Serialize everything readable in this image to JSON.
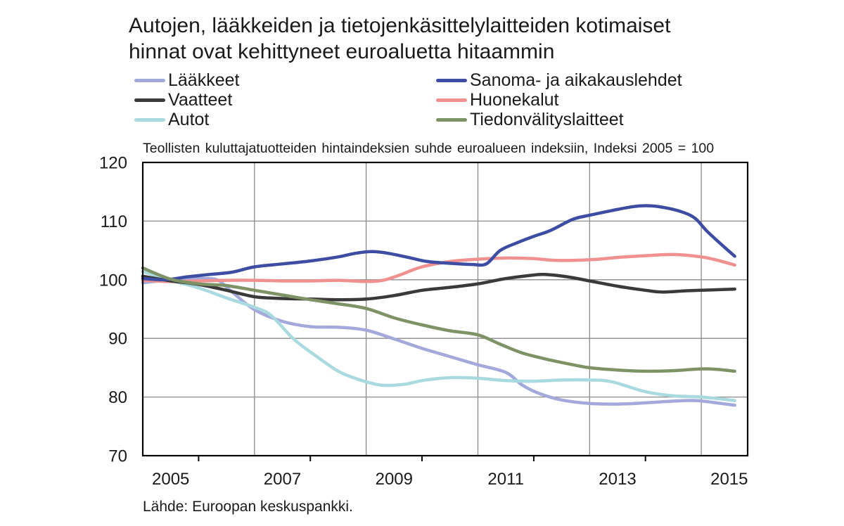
{
  "title": {
    "line1": "Autojen, lääkkeiden ja tietojenkäsittelylaitteiden kotimaiset",
    "line2": "hinnat ovat kehittyneet euroaluetta hitaammin"
  },
  "subtitle": "Teollisten kuluttajatuotteiden hintaindeksien suhde euroalueen indeksiin, Indeksi 2005 = 100",
  "source": "Lähde: Euroopan keskuspankki.",
  "legend": {
    "left": [
      "Lääkkeet",
      "Vaatteet",
      "Autot"
    ],
    "right": [
      "Sanoma- ja aikakauslehdet",
      "Huonekalut",
      "Tiedonvälityslaitteet"
    ]
  },
  "chart_data": {
    "type": "line",
    "title": "Autojen, lääkkeiden ja tietojenkäsittelylaitteiden kotimaiset hinnat ovat kehittyneet euroaluetta hitaammin",
    "subtitle": "Teollisten kuluttajatuotteiden hintaindeksien suhde euroalueen indeksiin, Indeksi 2005 = 100",
    "grid_color": "#8a8a8a",
    "frame_color": "#000000",
    "x_axis": {
      "range": [
        2005.0,
        2015.83
      ],
      "gridlines": [
        2007,
        2009,
        2011,
        2013,
        2015
      ],
      "minor_ticks": [
        2006,
        2008,
        2010,
        2012,
        2014
      ],
      "labels": [
        {
          "text": "2005",
          "pos": 2005.5
        },
        {
          "text": "2007",
          "pos": 2007.5
        },
        {
          "text": "2009",
          "pos": 2009.5
        },
        {
          "text": "2011",
          "pos": 2011.5
        },
        {
          "text": "2013",
          "pos": 2013.5
        },
        {
          "text": "2015",
          "pos": 2015.5
        }
      ]
    },
    "y_axis": {
      "range": [
        70,
        120
      ],
      "gridlines": [
        80,
        90,
        100,
        110
      ],
      "labels": [
        70,
        80,
        90,
        100,
        110,
        120
      ]
    },
    "series": [
      {
        "name": "Lääkkeet",
        "color": "#a3a9db",
        "points": [
          [
            2005.0,
            99.5
          ],
          [
            2005.4,
            99.9
          ],
          [
            2005.8,
            100.2
          ],
          [
            2006.1,
            100.2
          ],
          [
            2006.35,
            99.9
          ],
          [
            2006.6,
            97.9
          ],
          [
            2007.0,
            94.9
          ],
          [
            2007.5,
            92.9
          ],
          [
            2008.0,
            92.0
          ],
          [
            2008.5,
            91.9
          ],
          [
            2009.0,
            91.4
          ],
          [
            2009.5,
            89.9
          ],
          [
            2010.0,
            88.3
          ],
          [
            2010.5,
            86.9
          ],
          [
            2011.0,
            85.5
          ],
          [
            2011.5,
            84.2
          ],
          [
            2011.8,
            82.0
          ],
          [
            2012.1,
            80.6
          ],
          [
            2012.5,
            79.5
          ],
          [
            2013.0,
            78.9
          ],
          [
            2013.5,
            78.8
          ],
          [
            2014.0,
            79.0
          ],
          [
            2014.5,
            79.3
          ],
          [
            2014.9,
            79.4
          ],
          [
            2015.2,
            79.1
          ],
          [
            2015.6,
            78.6
          ]
        ]
      },
      {
        "name": "Autot",
        "color": "#a9dadf",
        "points": [
          [
            2005.0,
            101.4
          ],
          [
            2005.5,
            99.9
          ],
          [
            2006.0,
            98.6
          ],
          [
            2006.5,
            96.9
          ],
          [
            2007.0,
            95.3
          ],
          [
            2007.3,
            93.9
          ],
          [
            2007.7,
            89.9
          ],
          [
            2008.1,
            87.0
          ],
          [
            2008.5,
            84.4
          ],
          [
            2008.8,
            83.2
          ],
          [
            2009.0,
            82.6
          ],
          [
            2009.3,
            82.0
          ],
          [
            2009.7,
            82.2
          ],
          [
            2010.0,
            82.8
          ],
          [
            2010.5,
            83.3
          ],
          [
            2011.0,
            83.2
          ],
          [
            2011.5,
            82.8
          ],
          [
            2012.0,
            82.7
          ],
          [
            2012.5,
            82.9
          ],
          [
            2013.0,
            82.9
          ],
          [
            2013.4,
            82.6
          ],
          [
            2014.0,
            80.9
          ],
          [
            2014.5,
            80.2
          ],
          [
            2015.0,
            80.0
          ],
          [
            2015.6,
            79.4
          ]
        ]
      },
      {
        "name": "Huonekalut",
        "color": "#f0908f",
        "points": [
          [
            2005.0,
            99.9
          ],
          [
            2005.5,
            99.7
          ],
          [
            2006.0,
            99.8
          ],
          [
            2006.5,
            99.9
          ],
          [
            2007.0,
            99.9
          ],
          [
            2007.5,
            99.8
          ],
          [
            2008.0,
            99.8
          ],
          [
            2008.5,
            99.9
          ],
          [
            2009.0,
            99.7
          ],
          [
            2009.3,
            99.9
          ],
          [
            2009.6,
            100.8
          ],
          [
            2010.0,
            102.2
          ],
          [
            2010.5,
            103.1
          ],
          [
            2011.0,
            103.5
          ],
          [
            2011.5,
            103.7
          ],
          [
            2012.0,
            103.6
          ],
          [
            2012.4,
            103.3
          ],
          [
            2013.0,
            103.4
          ],
          [
            2013.5,
            103.8
          ],
          [
            2014.0,
            104.1
          ],
          [
            2014.5,
            104.3
          ],
          [
            2015.0,
            103.9
          ],
          [
            2015.3,
            103.3
          ],
          [
            2015.6,
            102.5
          ]
        ]
      },
      {
        "name": "Vaatteet",
        "color": "#3a3a3a",
        "points": [
          [
            2005.0,
            100.6
          ],
          [
            2005.5,
            99.8
          ],
          [
            2006.0,
            99.2
          ],
          [
            2006.5,
            98.2
          ],
          [
            2007.0,
            97.1
          ],
          [
            2007.5,
            96.8
          ],
          [
            2008.0,
            96.7
          ],
          [
            2008.5,
            96.6
          ],
          [
            2009.0,
            96.7
          ],
          [
            2009.5,
            97.3
          ],
          [
            2010.0,
            98.2
          ],
          [
            2010.5,
            98.7
          ],
          [
            2011.0,
            99.3
          ],
          [
            2011.5,
            100.2
          ],
          [
            2012.0,
            100.8
          ],
          [
            2012.2,
            100.9
          ],
          [
            2012.6,
            100.5
          ],
          [
            2013.0,
            99.8
          ],
          [
            2013.5,
            98.9
          ],
          [
            2014.0,
            98.2
          ],
          [
            2014.3,
            97.9
          ],
          [
            2014.7,
            98.1
          ],
          [
            2015.0,
            98.2
          ],
          [
            2015.6,
            98.4
          ]
        ]
      },
      {
        "name": "Sanoma- ja aikakauslehdet",
        "color": "#3c4da3",
        "points": [
          [
            2005.0,
            100.2
          ],
          [
            2005.4,
            100.0
          ],
          [
            2005.8,
            100.5
          ],
          [
            2006.2,
            100.9
          ],
          [
            2006.6,
            101.3
          ],
          [
            2007.0,
            102.2
          ],
          [
            2007.5,
            102.7
          ],
          [
            2008.0,
            103.2
          ],
          [
            2008.5,
            103.9
          ],
          [
            2008.8,
            104.5
          ],
          [
            2009.1,
            104.8
          ],
          [
            2009.4,
            104.5
          ],
          [
            2009.8,
            103.7
          ],
          [
            2010.1,
            103.1
          ],
          [
            2010.5,
            102.8
          ],
          [
            2010.9,
            102.6
          ],
          [
            2011.15,
            102.7
          ],
          [
            2011.4,
            105.0
          ],
          [
            2011.7,
            106.3
          ],
          [
            2012.0,
            107.4
          ],
          [
            2012.3,
            108.4
          ],
          [
            2012.7,
            110.3
          ],
          [
            2013.0,
            111.0
          ],
          [
            2013.4,
            111.8
          ],
          [
            2013.8,
            112.5
          ],
          [
            2014.1,
            112.6
          ],
          [
            2014.4,
            112.2
          ],
          [
            2014.7,
            111.4
          ],
          [
            2014.9,
            110.4
          ],
          [
            2015.1,
            108.3
          ],
          [
            2015.35,
            106.1
          ],
          [
            2015.6,
            104.0
          ]
        ]
      },
      {
        "name": "Tiedonvälityslaitteet",
        "color": "#7d9366",
        "points": [
          [
            2005.0,
            102.0
          ],
          [
            2005.5,
            100.1
          ],
          [
            2006.0,
            99.3
          ],
          [
            2006.5,
            99.0
          ],
          [
            2007.0,
            98.2
          ],
          [
            2007.5,
            97.4
          ],
          [
            2008.0,
            96.6
          ],
          [
            2008.5,
            95.9
          ],
          [
            2009.0,
            95.1
          ],
          [
            2009.5,
            93.5
          ],
          [
            2010.0,
            92.3
          ],
          [
            2010.5,
            91.3
          ],
          [
            2011.0,
            90.6
          ],
          [
            2011.4,
            89.0
          ],
          [
            2011.8,
            87.5
          ],
          [
            2012.3,
            86.3
          ],
          [
            2012.7,
            85.5
          ],
          [
            2013.0,
            85.0
          ],
          [
            2013.5,
            84.6
          ],
          [
            2014.0,
            84.4
          ],
          [
            2014.5,
            84.5
          ],
          [
            2015.0,
            84.8
          ],
          [
            2015.3,
            84.7
          ],
          [
            2015.6,
            84.4
          ]
        ]
      }
    ]
  }
}
